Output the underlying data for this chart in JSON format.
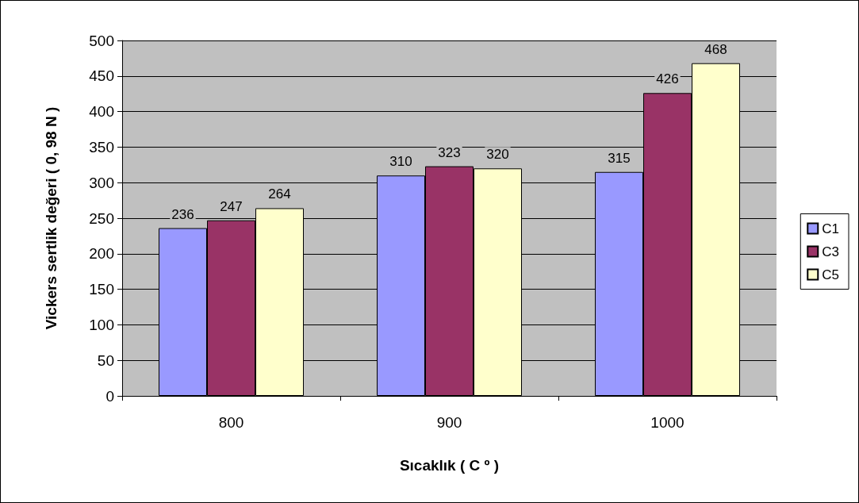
{
  "chart_data": {
    "type": "bar",
    "xlabel": "Sıcaklık ( C º )",
    "ylabel": "Vickers sertlik değeri ( 0, 98 N )",
    "categories": [
      "800",
      "900",
      "1000"
    ],
    "series": [
      {
        "name": "C1",
        "color": "#9999ff",
        "values": [
          236,
          310,
          315
        ]
      },
      {
        "name": "C3",
        "color": "#993366",
        "values": [
          247,
          323,
          426
        ]
      },
      {
        "name": "C5",
        "color": "#ffffcc",
        "values": [
          264,
          320,
          468
        ]
      }
    ],
    "ylim": [
      0,
      500
    ],
    "yticks": [
      0,
      50,
      100,
      150,
      200,
      250,
      300,
      350,
      400,
      450,
      500
    ],
    "grid": "y",
    "legend": "right",
    "data_labels": true
  }
}
